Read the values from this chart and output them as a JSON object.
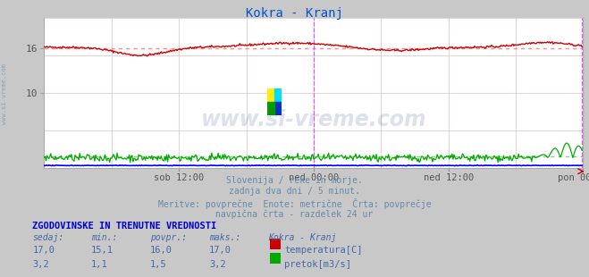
{
  "title": "Kokra - Kranj",
  "title_color": "#0055cc",
  "bg_color": "#c8c8c8",
  "plot_bg_color": "#ffffff",
  "text_area_bg": "#e8e8e8",
  "xlabel_ticks": [
    "sob 12:00",
    "ned 00:00",
    "ned 12:00",
    "pon 00:00"
  ],
  "n_points": 576,
  "ylim": [
    0,
    20
  ],
  "grid_color": "#ddaaaa",
  "grid_color2": "#ddcccc",
  "temp_color": "#cc0000",
  "flow_color": "#00aa00",
  "level_color": "#0000ff",
  "avg_temp_color": "#ff8888",
  "avg_flow_color": "#88cc88",
  "vline_color": "#ff44ff",
  "temp_avg": 16.0,
  "flow_avg": 1.5,
  "footer_lines": [
    "Slovenija / reke in morje.",
    "zadnja dva dni / 5 minut.",
    "Meritve: povprečne  Enote: metrične  Črta: povprečje",
    "navpična črta - razdelek 24 ur"
  ],
  "footer_color": "#6688aa",
  "table_header": "ZGODOVINSKE IN TRENUTNE VREDNOSTI",
  "table_header_color": "#0000cc",
  "col_headers": [
    "sedaj:",
    "min.:",
    "povpr.:",
    "maks.:",
    "Kokra - Kranj"
  ],
  "col_color": "#4466aa",
  "row1": [
    "17,0",
    "15,1",
    "16,0",
    "17,0"
  ],
  "row1_label": "temperatura[C]",
  "row1_swatch": "#cc0000",
  "row2": [
    "3,2",
    "1,1",
    "1,5",
    "3,2"
  ],
  "row2_label": "pretok[m3/s]",
  "row2_swatch": "#00aa00",
  "watermark": "www.si-vreme.com",
  "watermark_color": "#1a3a8a",
  "watermark_alpha": 0.15,
  "side_text": "www.si-vreme.com",
  "side_text_color": "#7799bb",
  "logo_yellow": "#ffee00",
  "logo_cyan": "#00ddff",
  "logo_blue": "#0033cc",
  "logo_green": "#009900"
}
